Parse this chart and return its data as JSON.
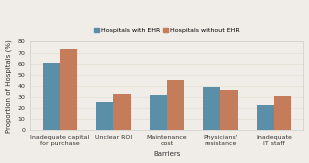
{
  "categories": [
    "Inadequate capital\nfor purchase",
    "Unclear ROI",
    "Maintenance\ncost",
    "Physicians'\nresistance",
    "Inadequate\nIT staff"
  ],
  "with_ehr": [
    61,
    25,
    32,
    39,
    23
  ],
  "without_ehr": [
    73,
    33,
    45,
    36,
    31
  ],
  "color_with": "#5b8fa8",
  "color_without": "#c47c5a",
  "xlabel": "Barriers",
  "ylabel": "Proportion of Hospitals (%)",
  "ylim": [
    0,
    80
  ],
  "yticks": [
    0,
    10,
    20,
    30,
    40,
    50,
    60,
    70,
    80
  ],
  "legend_with": "Hospitals with EHR",
  "legend_without": "Hospitals without EHR",
  "background_color": "#f0ede8",
  "plot_bg": "#f0ede8",
  "border_color": "#cccccc",
  "bar_width": 0.32,
  "fontsize_axis_label": 5,
  "fontsize_tick": 4.5,
  "fontsize_legend": 4.5
}
